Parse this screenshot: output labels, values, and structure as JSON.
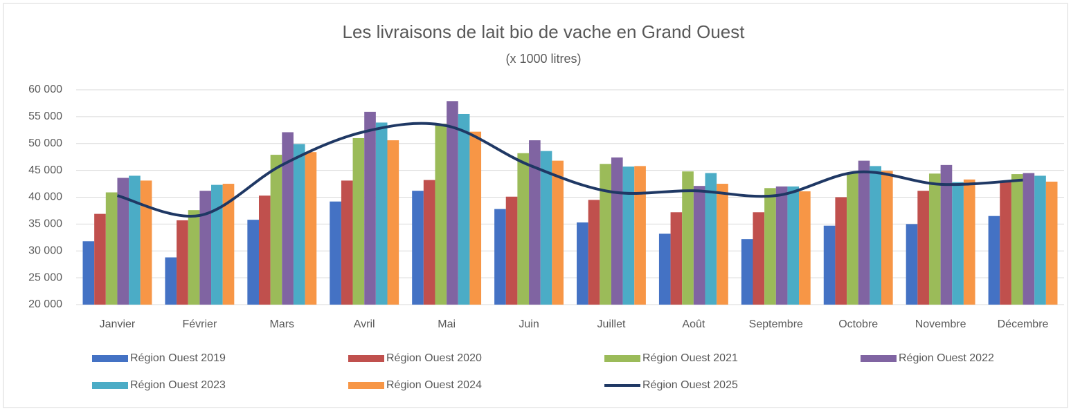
{
  "chart_data": {
    "type": "bar",
    "title": "Les livraisons de lait bio de vache en Grand Ouest",
    "subtitle": "(x 1000 litres)",
    "categories": [
      "Janvier",
      "Février",
      "Mars",
      "Avril",
      "Mai",
      "Juin",
      "Juillet",
      "Août",
      "Septembre",
      "Octobre",
      "Novembre",
      "Décembre"
    ],
    "series": [
      {
        "name": "Région Ouest 2019",
        "color": "#4472c4",
        "values": [
          31800,
          28800,
          35800,
          39200,
          41200,
          37800,
          35300,
          33200,
          32200,
          34700,
          35000,
          36500
        ]
      },
      {
        "name": "Région Ouest 2020",
        "color": "#c0504d",
        "values": [
          36900,
          35700,
          40300,
          43100,
          43200,
          40100,
          39500,
          37200,
          37200,
          40000,
          41200,
          42800
        ]
      },
      {
        "name": "Région Ouest 2021",
        "color": "#9bbb59",
        "values": [
          40900,
          37600,
          47900,
          51000,
          53700,
          48200,
          46200,
          44800,
          41700,
          44500,
          44400,
          44300
        ]
      },
      {
        "name": "Région Ouest 2022",
        "color": "#8064a2",
        "values": [
          43600,
          41200,
          52100,
          55900,
          57900,
          50600,
          47400,
          42100,
          42000,
          46800,
          46000,
          44500
        ]
      },
      {
        "name": "Région Ouest 2023",
        "color": "#4bacc6",
        "values": [
          44000,
          42300,
          49900,
          53900,
          55500,
          48600,
          45700,
          44500,
          42000,
          45800,
          42800,
          44000
        ]
      },
      {
        "name": "Région Ouest 2024",
        "color": "#f79646",
        "values": [
          43100,
          42500,
          48400,
          50600,
          52200,
          46800,
          45800,
          42500,
          41100,
          44900,
          43300,
          42900
        ]
      },
      {
        "name": "Région Ouest 2025",
        "color": "#1f3864",
        "type": "line",
        "smooth": true,
        "values": [
          40300,
          36600,
          46000,
          52200,
          53300,
          46000,
          41000,
          41200,
          40300,
          44700,
          42400,
          43200
        ]
      }
    ],
    "ylim": [
      20000,
      60000
    ],
    "yticks": [
      {
        "value": 20000,
        "label": "20 000"
      },
      {
        "value": 25000,
        "label": "25 000"
      },
      {
        "value": 30000,
        "label": "30 000"
      },
      {
        "value": 35000,
        "label": "35 000"
      },
      {
        "value": 40000,
        "label": "40 000"
      },
      {
        "value": 45000,
        "label": "45 000"
      },
      {
        "value": 50000,
        "label": "50 000"
      },
      {
        "value": 55000,
        "label": "55 000"
      },
      {
        "value": 60000,
        "label": "60 000"
      }
    ],
    "grid": true,
    "legend": "bottom"
  }
}
